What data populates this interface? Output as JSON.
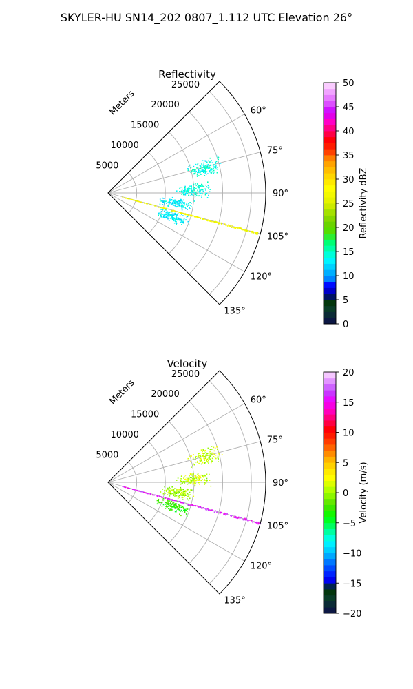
{
  "figure": {
    "suptitle": "SKYLER-HU  SN14_202  0807_1.112 UTC Elevation 26°"
  },
  "chart_data": [
    {
      "type": "polar-sector-scatter",
      "title": "Reflectivity",
      "range_label": "Meters",
      "r_ticks": [
        5000,
        10000,
        15000,
        20000,
        25000
      ],
      "r_max": 27500,
      "theta_ticks": [
        "60°",
        "75°",
        "90°",
        "105°",
        "120°",
        "135°"
      ],
      "theta_range_deg": [
        45,
        135
      ],
      "colorbar": {
        "label": "Reflectivity dBZ",
        "min": 0,
        "max": 50,
        "ticks": [
          0,
          5,
          10,
          15,
          20,
          25,
          30,
          35,
          40,
          45,
          50
        ]
      },
      "echo_regions": [
        {
          "theta_deg": 75,
          "r_m": 17500,
          "value_dbz": 14
        },
        {
          "theta_deg": 88,
          "r_m": 15000,
          "value_dbz": 14
        },
        {
          "theta_deg": 98,
          "r_m": 12000,
          "value_dbz": 13
        },
        {
          "theta_deg": 110,
          "r_m": 12000,
          "value_dbz": 13
        },
        {
          "theta_deg": 105,
          "r_m": 23000,
          "value_dbz": 27,
          "note": "radial spoke"
        }
      ]
    },
    {
      "type": "polar-sector-scatter",
      "title": "Velocity",
      "range_label": "Meters",
      "r_ticks": [
        5000,
        10000,
        15000,
        20000,
        25000
      ],
      "r_max": 27500,
      "theta_ticks": [
        "60°",
        "75°",
        "90°",
        "105°",
        "120°",
        "135°"
      ],
      "theta_range_deg": [
        45,
        135
      ],
      "colorbar": {
        "label": "Velocity (m/s)",
        "min": -20,
        "max": 20,
        "ticks": [
          -20,
          -15,
          -10,
          -5,
          0,
          5,
          10,
          15,
          20
        ]
      },
      "echo_regions": [
        {
          "theta_deg": 75,
          "r_m": 17500,
          "value_ms": 1
        },
        {
          "theta_deg": 88,
          "r_m": 15000,
          "value_ms": 1
        },
        {
          "theta_deg": 98,
          "r_m": 12000,
          "value_ms": 0
        },
        {
          "theta_deg": 110,
          "r_m": 12000,
          "value_ms": -3
        },
        {
          "theta_deg": 105,
          "r_m": 23000,
          "value_ms": 16,
          "note": "radial spoke"
        }
      ]
    }
  ]
}
